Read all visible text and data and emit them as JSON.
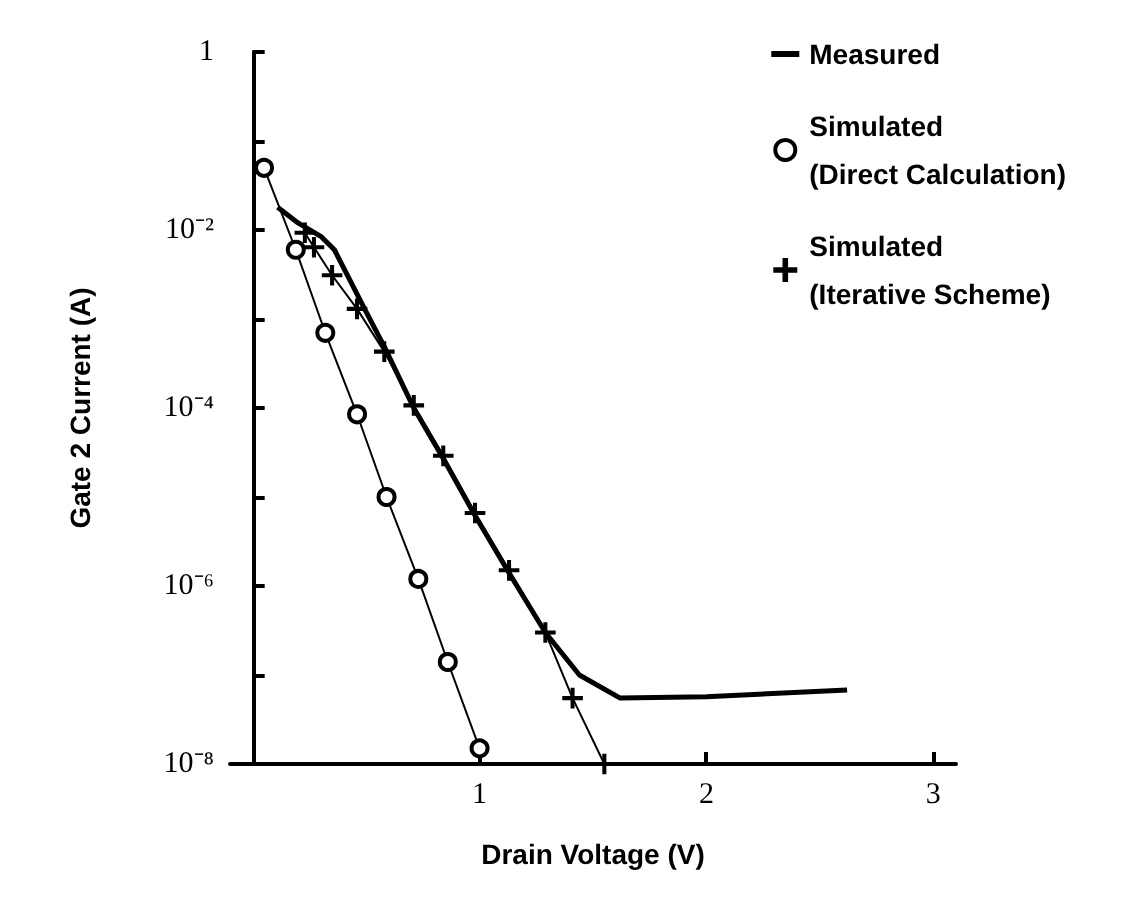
{
  "chart_data": {
    "type": "line",
    "xlabel": "Drain Voltage (V)",
    "ylabel": "Gate 2 Current (A)",
    "log": "y",
    "xlim": [
      -0.1,
      3.1
    ],
    "xticks": [
      1,
      2,
      3
    ],
    "ylim": [
      1e-08,
      1
    ],
    "yticks": [
      1,
      {
        "value": 0.1,
        "label": null
      },
      {
        "value": 0.01,
        "label": "10⁻²"
      },
      {
        "value": 0.001,
        "label": null
      },
      {
        "value": 0.0001,
        "label": "10⁻⁴"
      },
      {
        "value": 1e-05,
        "label": null
      },
      {
        "value": 1e-06,
        "label": "10⁻⁶"
      },
      {
        "value": 1e-07,
        "label": null
      },
      {
        "value": 1e-08,
        "label": "10⁻⁸"
      }
    ],
    "grid": false,
    "legend": "top right",
    "series": [
      {
        "name": "Measured",
        "color": "#000000",
        "marker": "none",
        "x": [
          0.11,
          0.2,
          0.3,
          0.36,
          0.5,
          0.58,
          0.71,
          0.84,
          0.98,
          1.13,
          1.29,
          1.44,
          1.62,
          2.0,
          2.62
        ],
        "values": [
          0.018,
          0.012,
          0.0085,
          0.006,
          0.0012,
          0.00049,
          0.0001,
          2.7e-05,
          6.2e-06,
          1.4e-06,
          3e-07,
          1e-07,
          5.5e-08,
          5.7e-08,
          6.8e-08
        ]
      },
      {
        "name": "Simulated (Direct Calculation)",
        "color": "#000000",
        "marker": "circle",
        "x": [
          0.05,
          0.19,
          0.32,
          0.46,
          0.59,
          0.73,
          0.86,
          1.0
        ],
        "values": [
          0.05,
          0.006,
          0.0007,
          8.5e-05,
          1e-05,
          1.2e-06,
          1.4e-07,
          1.5e-08
        ]
      },
      {
        "name": "Simulated (Iterative Scheme)",
        "color": "#000000",
        "marker": "cross",
        "x": [
          0.23,
          0.27,
          0.35,
          0.46,
          0.58,
          0.71,
          0.84,
          0.98,
          1.13,
          1.29,
          1.41,
          1.55
        ],
        "values": [
          0.0093,
          0.0064,
          0.0031,
          0.0013,
          0.00043,
          0.000107,
          2.9e-05,
          6.6e-06,
          1.5e-06,
          3e-07,
          5.5e-08,
          1e-08
        ]
      }
    ]
  }
}
